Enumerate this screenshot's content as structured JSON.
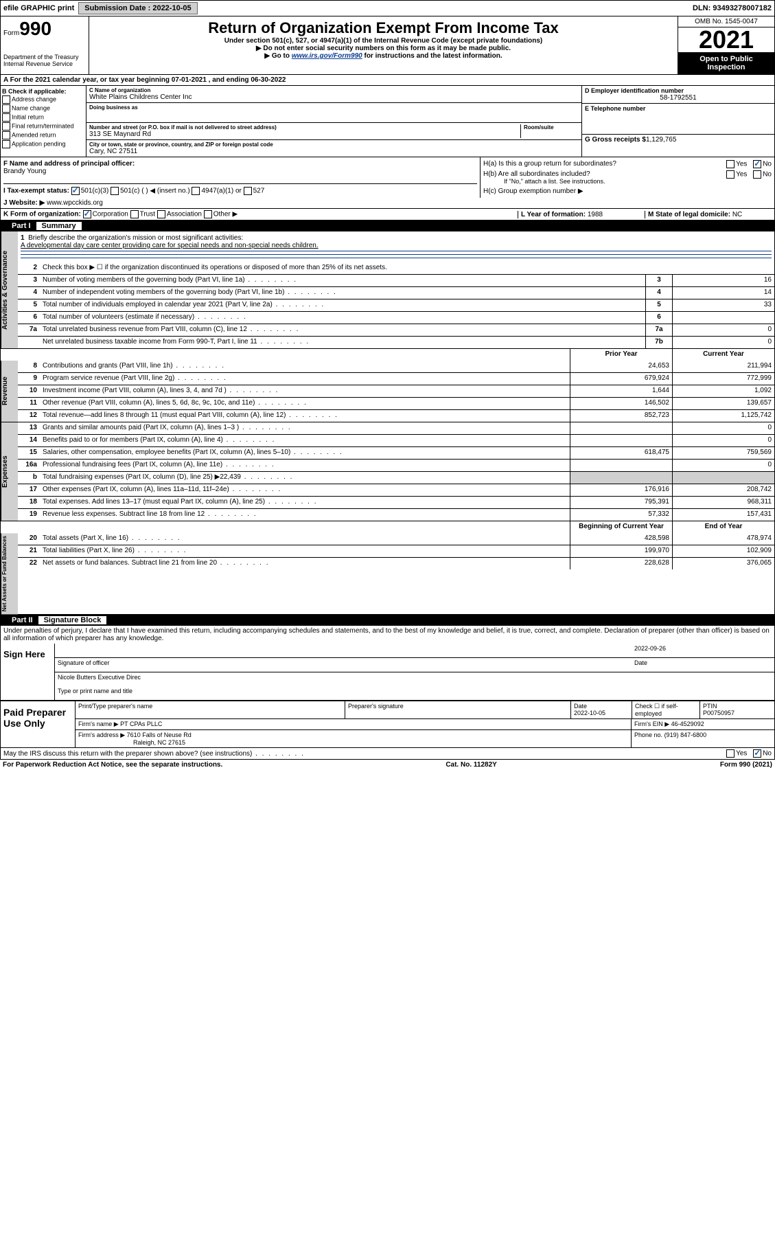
{
  "top": {
    "efile": "efile GRAPHIC print",
    "sub_label": "Submission Date :",
    "sub_date": "2022-10-05",
    "dln_label": "DLN:",
    "dln": "93493278007182"
  },
  "header": {
    "form": "Form",
    "num": "990",
    "title": "Return of Organization Exempt From Income Tax",
    "sub1": "Under section 501(c), 527, or 4947(a)(1) of the Internal Revenue Code (except private foundations)",
    "sub2": "▶ Do not enter social security numbers on this form as it may be made public.",
    "sub3_pre": "▶ Go to ",
    "sub3_link": "www.irs.gov/Form990",
    "sub3_post": " for instructions and the latest information.",
    "dept": "Department of the Treasury\nInternal Revenue Service",
    "omb": "OMB No. 1545-0047",
    "year": "2021",
    "open": "Open to Public Inspection"
  },
  "line_a": "A For the 2021 calendar year, or tax year beginning 07-01-2021  , and ending 06-30-2022",
  "col_b": {
    "title": "B Check if applicable:",
    "opts": [
      "Address change",
      "Name change",
      "Initial return",
      "Final return/terminated",
      "Amended return",
      "Application pending"
    ]
  },
  "org": {
    "c_label": "C Name of organization",
    "name": "White Plains Childrens Center Inc",
    "dba_label": "Doing business as",
    "dba": "",
    "addr_label": "Number and street (or P.O. box if mail is not delivered to street address)",
    "room_label": "Room/suite",
    "addr": "313 SE Maynard Rd",
    "city_label": "City or town, state or province, country, and ZIP or foreign postal code",
    "city": "Cary, NC  27511"
  },
  "right": {
    "d_label": "D Employer identification number",
    "ein": "58-1792551",
    "e_label": "E Telephone number",
    "phone": "",
    "g_label": "G Gross receipts $",
    "g_val": "1,129,765"
  },
  "f": {
    "label": "F Name and address of principal officer:",
    "name": "Brandy Young"
  },
  "h": {
    "a": "H(a)  Is this a group return for subordinates?",
    "b": "H(b)  Are all subordinates included?",
    "b_note": "If \"No,\" attach a list. See instructions.",
    "c": "H(c)  Group exemption number ▶",
    "yes": "Yes",
    "no": "No"
  },
  "i": {
    "label": "I  Tax-exempt status:",
    "o1": "501(c)(3)",
    "o2": "501(c) (  ) ◀ (insert no.)",
    "o3": "4947(a)(1) or",
    "o4": "527"
  },
  "j": {
    "label": "J  Website: ▶",
    "val": "www.wpcckids.org"
  },
  "k": {
    "label": "K Form of organization:",
    "o1": "Corporation",
    "o2": "Trust",
    "o3": "Association",
    "o4": "Other ▶"
  },
  "l": {
    "label": "L Year of formation:",
    "val": "1988"
  },
  "m": {
    "label": "M State of legal domicile:",
    "val": "NC"
  },
  "part1": {
    "label": "Part I",
    "title": "Summary"
  },
  "summary": {
    "q1": "Briefly describe the organization's mission or most significant activities:",
    "q1_ans": "A developmental day care center providing care for special needs and non-special needs children.",
    "q2": "Check this box ▶ ☐  if the organization discontinued its operations or disposed of more than 25% of its net assets.",
    "rows_simple": [
      {
        "n": "3",
        "desc": "Number of voting members of the governing body (Part VI, line 1a)",
        "lbl": "3",
        "val": "16"
      },
      {
        "n": "4",
        "desc": "Number of independent voting members of the governing body (Part VI, line 1b)",
        "lbl": "4",
        "val": "14"
      },
      {
        "n": "5",
        "desc": "Total number of individuals employed in calendar year 2021 (Part V, line 2a)",
        "lbl": "5",
        "val": "33"
      },
      {
        "n": "6",
        "desc": "Total number of volunteers (estimate if necessary)",
        "lbl": "6",
        "val": ""
      },
      {
        "n": "7a",
        "desc": "Total unrelated business revenue from Part VIII, column (C), line 12",
        "lbl": "7a",
        "val": "0"
      },
      {
        "n": "",
        "desc": "Net unrelated business taxable income from Form 990-T, Part I, line 11",
        "lbl": "7b",
        "val": "0"
      }
    ],
    "header_prior": "Prior Year",
    "header_current": "Current Year",
    "rev": [
      {
        "n": "8",
        "desc": "Contributions and grants (Part VIII, line 1h)",
        "p": "24,653",
        "c": "211,994"
      },
      {
        "n": "9",
        "desc": "Program service revenue (Part VIII, line 2g)",
        "p": "679,924",
        "c": "772,999"
      },
      {
        "n": "10",
        "desc": "Investment income (Part VIII, column (A), lines 3, 4, and 7d )",
        "p": "1,644",
        "c": "1,092"
      },
      {
        "n": "11",
        "desc": "Other revenue (Part VIII, column (A), lines 5, 6d, 8c, 9c, 10c, and 11e)",
        "p": "146,502",
        "c": "139,657"
      },
      {
        "n": "12",
        "desc": "Total revenue—add lines 8 through 11 (must equal Part VIII, column (A), line 12)",
        "p": "852,723",
        "c": "1,125,742"
      }
    ],
    "exp": [
      {
        "n": "13",
        "desc": "Grants and similar amounts paid (Part IX, column (A), lines 1–3 )",
        "p": "",
        "c": "0"
      },
      {
        "n": "14",
        "desc": "Benefits paid to or for members (Part IX, column (A), line 4)",
        "p": "",
        "c": "0"
      },
      {
        "n": "15",
        "desc": "Salaries, other compensation, employee benefits (Part IX, column (A), lines 5–10)",
        "p": "618,475",
        "c": "759,569"
      },
      {
        "n": "16a",
        "desc": "Professional fundraising fees (Part IX, column (A), line 11e)",
        "p": "",
        "c": "0"
      },
      {
        "n": "b",
        "desc": "Total fundraising expenses (Part IX, column (D), line 25) ▶22,439",
        "p": "SHADE",
        "c": "SHADE"
      },
      {
        "n": "17",
        "desc": "Other expenses (Part IX, column (A), lines 11a–11d, 11f–24e)",
        "p": "176,916",
        "c": "208,742"
      },
      {
        "n": "18",
        "desc": "Total expenses. Add lines 13–17 (must equal Part IX, column (A), line 25)",
        "p": "795,391",
        "c": "968,311"
      },
      {
        "n": "19",
        "desc": "Revenue less expenses. Subtract line 18 from line 12",
        "p": "57,332",
        "c": "157,431"
      }
    ],
    "header_begin": "Beginning of Current Year",
    "header_end": "End of Year",
    "net": [
      {
        "n": "20",
        "desc": "Total assets (Part X, line 16)",
        "p": "428,598",
        "c": "478,974"
      },
      {
        "n": "21",
        "desc": "Total liabilities (Part X, line 26)",
        "p": "199,970",
        "c": "102,909"
      },
      {
        "n": "22",
        "desc": "Net assets or fund balances. Subtract line 21 from line 20",
        "p": "228,628",
        "c": "376,065"
      }
    ],
    "side_gov": "Activities & Governance",
    "side_rev": "Revenue",
    "side_exp": "Expenses",
    "side_net": "Net Assets or Fund Balances"
  },
  "part2": {
    "label": "Part II",
    "title": "Signature Block",
    "perjury": "Under penalties of perjury, I declare that I have examined this return, including accompanying schedules and statements, and to the best of my knowledge and belief, it is true, correct, and complete. Declaration of preparer (other than officer) is based on all information of which preparer has any knowledge."
  },
  "sign": {
    "label": "Sign Here",
    "sig": "Signature of officer",
    "date_label": "Date",
    "date": "2022-09-26",
    "name": "Nicole Butters  Executive Direc",
    "name_label": "Type or print name and title"
  },
  "paid": {
    "label": "Paid Preparer Use Only",
    "h1": "Print/Type preparer's name",
    "h2": "Preparer's signature",
    "h3": "Date",
    "h3_val": "2022-10-05",
    "h4": "Check ☐ if self-employed",
    "h5_label": "PTIN",
    "h5": "P00750957",
    "firm_label": "Firm's name    ▶",
    "firm": "PT CPAs PLLC",
    "ein_label": "Firm's EIN ▶",
    "ein": "46-4529092",
    "addr_label": "Firm's address ▶",
    "addr1": "7610 Falls of Neuse Rd",
    "addr2": "Raleigh, NC  27615",
    "phone_label": "Phone no.",
    "phone": "(919) 847-6800"
  },
  "may_discuss": "May the IRS discuss this return with the preparer shown above? (see instructions)",
  "footer": {
    "l": "For Paperwork Reduction Act Notice, see the separate instructions.",
    "c": "Cat. No. 11282Y",
    "r": "Form 990 (2021)"
  }
}
